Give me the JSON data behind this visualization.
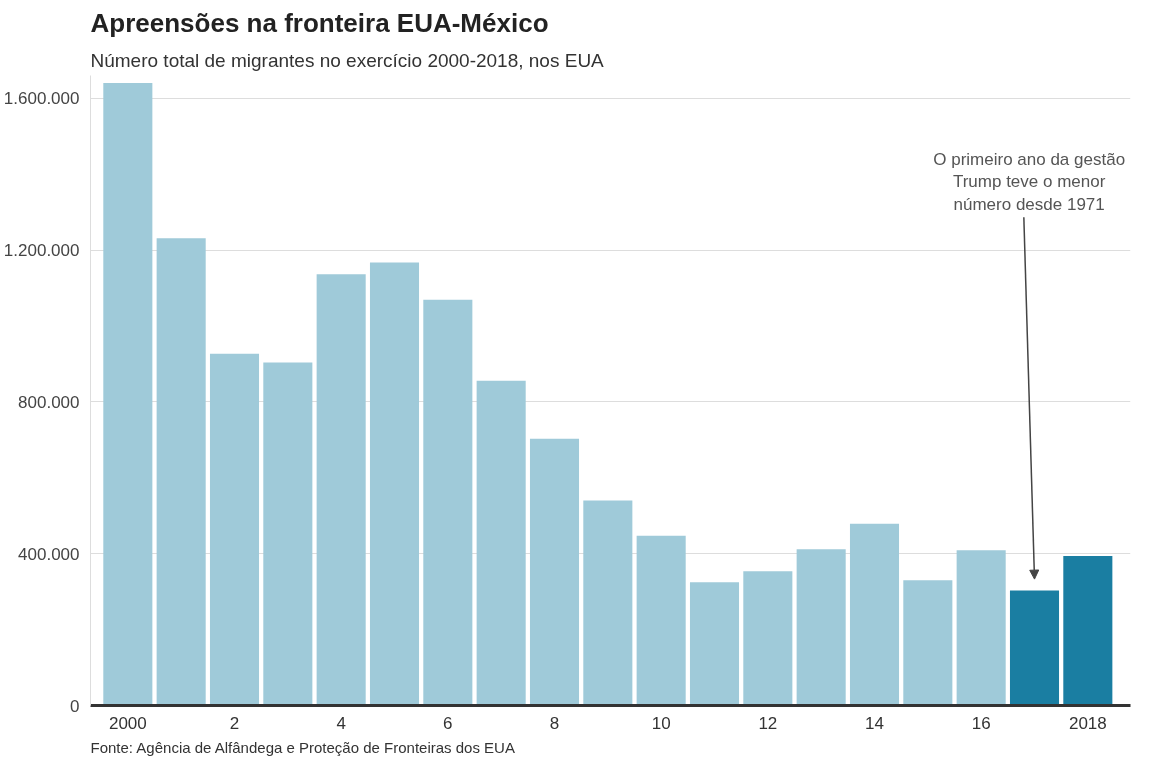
{
  "chart_data": {
    "type": "bar",
    "title": "Apreensões na fronteira EUA-México",
    "subtitle": "Número total de migrantes no exercício 2000-2018, nos EUA",
    "categories": [
      "2000",
      null,
      "2",
      null,
      "4",
      null,
      "6",
      null,
      "8",
      null,
      "10",
      null,
      "12",
      null,
      "14",
      null,
      "16",
      null,
      "2018"
    ],
    "values": [
      1640000,
      1231000,
      927000,
      904000,
      1136000,
      1167000,
      1069000,
      856000,
      703000,
      540000,
      447000,
      325000,
      354000,
      412000,
      479000,
      330000,
      409000,
      303000,
      394000
    ],
    "colors": [
      "#9fcad9",
      "#9fcad9",
      "#9fcad9",
      "#9fcad9",
      "#9fcad9",
      "#9fcad9",
      "#9fcad9",
      "#9fcad9",
      "#9fcad9",
      "#9fcad9",
      "#9fcad9",
      "#9fcad9",
      "#9fcad9",
      "#9fcad9",
      "#9fcad9",
      "#9fcad9",
      "#9fcad9",
      "#1a7ea2",
      "#1a7ea2"
    ],
    "ylim": [
      0,
      1660000
    ],
    "yticks": [
      0,
      {
        "value": 400000,
        "label": "400.000"
      },
      {
        "value": 800000,
        "label": "800.000"
      },
      {
        "value": 1200000,
        "label": "1.200.000"
      },
      {
        "value": 1600000,
        "label": "1.600.000"
      }
    ],
    "grid": "y",
    "annotations": [
      "O primeiro ano da gestão\nTrump teve o menor\nnúmero desde 1971",
      "Fonte: Agência de Alfândega e Proteção de Fronteiras dos EUA"
    ]
  }
}
